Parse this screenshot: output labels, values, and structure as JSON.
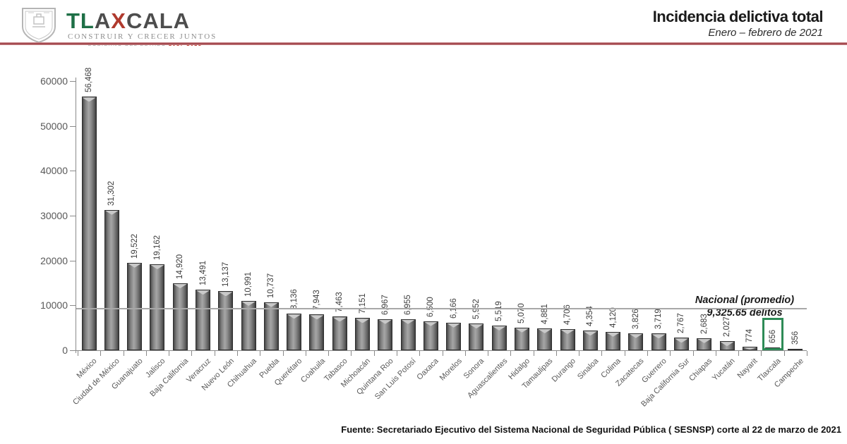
{
  "header": {
    "title": "Incidencia delictiva total",
    "subtitle": "Enero – febrero de 2021",
    "logo": {
      "wordmark": [
        {
          "text": "TL",
          "color": "#1e6f46"
        },
        {
          "text": "A",
          "color": "#4d4d4d"
        },
        {
          "text": "X",
          "color": "#b03a2e"
        },
        {
          "text": "CALA",
          "color": "#4d4d4d"
        }
      ],
      "tagline": "CONSTRUIR Y CRECER JUNTOS",
      "subtag_dash": "—",
      "subtag_prefix": "GOBIERNO DEL ESTADO",
      "subtag_years": "2017-2021",
      "crest_icon": "tlaxcala-coat-of-arms"
    }
  },
  "chart_data": {
    "type": "bar",
    "title": "Incidencia delictiva total",
    "subtitle": "Enero – febrero de 2021",
    "categories": [
      "México",
      "Ciudad de México",
      "Guanajuato",
      "Jalisco",
      "Baja California",
      "Veracruz",
      "Nuevo León",
      "Chihuahua",
      "Puebla",
      "Querétaro",
      "Coahuila",
      "Tabasco",
      "Michoacán",
      "Quintana Roo",
      "San Luis Potosí",
      "Oaxaca",
      "Morelos",
      "Sonora",
      "Aguascalientes",
      "Hidalgo",
      "Tamaulipas",
      "Durango",
      "Sinaloa",
      "Colima",
      "Zacatecas",
      "Guerrero",
      "Baja California Sur",
      "Chiapas",
      "Yucatán",
      "Nayarit",
      "Tlaxcala",
      "Campeche"
    ],
    "values": [
      56468,
      31302,
      19522,
      19162,
      14920,
      13491,
      13137,
      10991,
      10737,
      8136,
      7943,
      7463,
      7151,
      6967,
      6955,
      6500,
      6166,
      5952,
      5519,
      5070,
      4881,
      4706,
      4354,
      4120,
      3826,
      3719,
      2767,
      2683,
      2027,
      774,
      656,
      356
    ],
    "value_labels": [
      "56,468",
      "31,302",
      "19,522",
      "19,162",
      "14,920",
      "13,491",
      "13,137",
      "10,991",
      "10,737",
      "8,136",
      "7,943",
      "7,463",
      "7,151",
      "6,967",
      "6,955",
      "6,500",
      "6,166",
      "5,952",
      "5,519",
      "5,070",
      "4,881",
      "4,706",
      "4,354",
      "4,120",
      "3,826",
      "3,719",
      "2,767",
      "2,683",
      "2,027",
      "774",
      "656",
      "356"
    ],
    "xlabel": "",
    "ylabel": "",
    "ylim": [
      0,
      60000
    ],
    "yticks": [
      0,
      10000,
      20000,
      30000,
      40000,
      50000,
      60000
    ],
    "ytick_labels": [
      "0",
      "10000",
      "20000",
      "30000",
      "40000",
      "50000",
      "60000"
    ],
    "grid": false,
    "legend": false,
    "bar_color": "#8c8c8c",
    "average_line": {
      "value": 9325.65,
      "color": "#a8a8a8",
      "label_line1": "Nacional (promedio)",
      "label_line2": "9,325.65 delitos"
    },
    "highlight": {
      "category": "Tlaxcala",
      "index": 30,
      "box_color": "#2e8b57"
    }
  },
  "footer": {
    "source": "Fuente: Secretariado Ejecutivo del Sistema Nacional de Seguridad Pública ( SESNSP)  corte al 22 de marzo de 2021"
  }
}
